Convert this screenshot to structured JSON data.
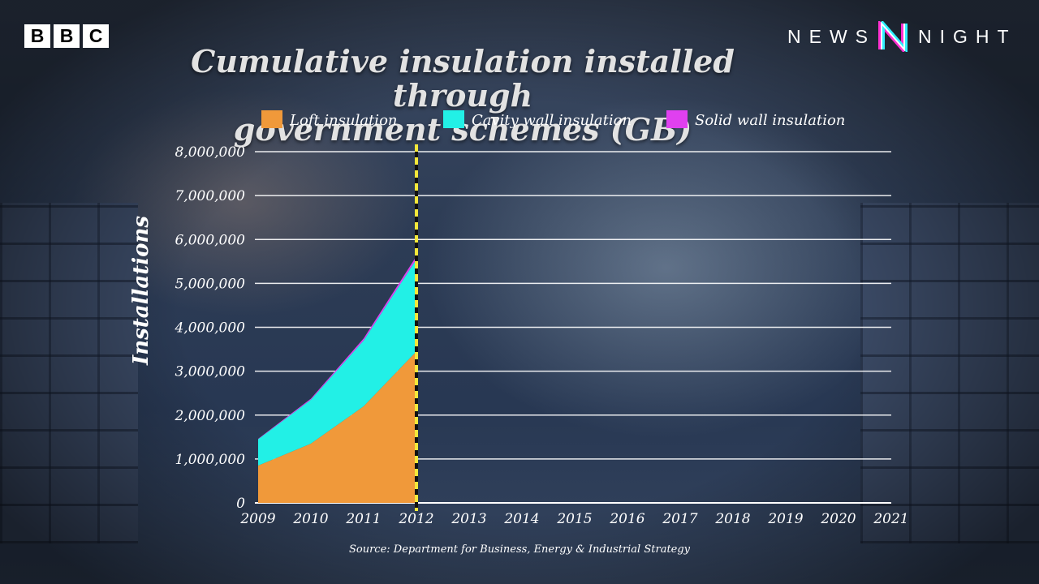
{
  "brand": {
    "bbc_letters": [
      "B",
      "B",
      "C"
    ],
    "programme_left": "NEWS",
    "programme_right": "NIGHT"
  },
  "chart_data": {
    "type": "area",
    "stacked": true,
    "title_lines": [
      "Cumulative insulation installed through",
      "government schemes (GB)"
    ],
    "ylabel": "Installations",
    "xlabel": "",
    "x": [
      2009,
      2010,
      2011,
      2012
    ],
    "x_ticks": [
      "2009",
      "2010",
      "2011",
      "2012",
      "2013",
      "2014",
      "2015",
      "2016",
      "2017",
      "2018",
      "2019",
      "2020",
      "2021"
    ],
    "xlim": [
      2009,
      2021
    ],
    "ylim": [
      0,
      8000000
    ],
    "y_ticks": [
      "0",
      "1,000,000",
      "2,000,000",
      "3,000,000",
      "4,000,000",
      "5,000,000",
      "6,000,000",
      "7,000,000",
      "8,000,000"
    ],
    "series": [
      {
        "name": "Loft insulation",
        "color": "#f0993a",
        "values": [
          850000,
          1350000,
          2200000,
          3450000
        ]
      },
      {
        "name": "Cavity wall insulation",
        "color": "#22f0e6",
        "values": [
          600000,
          1000000,
          1500000,
          2100000
        ]
      },
      {
        "name": "Solid wall insulation",
        "color": "#e040f0",
        "values": [
          10000,
          25000,
          45000,
          70000
        ]
      }
    ],
    "marker": {
      "x": 2012,
      "color": "#f5e83a",
      "style": "dashed"
    },
    "grid": true,
    "legend_position": "top",
    "source": "Source: Department for Business, Energy & Industrial Strategy"
  }
}
